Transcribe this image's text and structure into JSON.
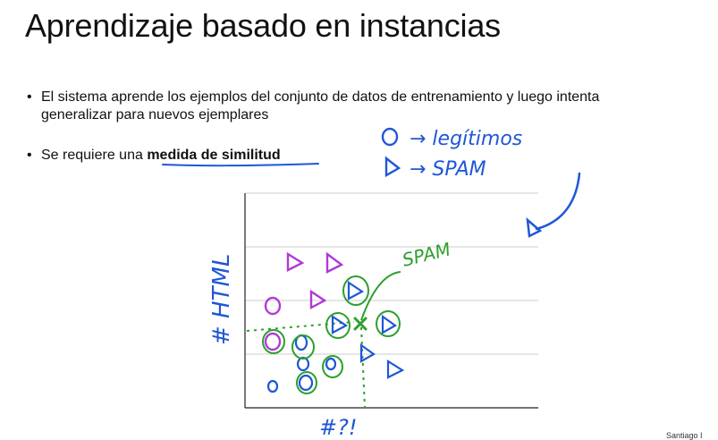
{
  "slide": {
    "title": "Aprendizaje basado en instancias",
    "bullets": [
      {
        "line1": "El sistema aprende los ejemplos del conjunto de datos de entrenamiento y luego intenta",
        "line2": "generalizar para nuevos ejemplares"
      },
      {
        "prefix": "Se requiere una ",
        "bold": "medida de similitud"
      }
    ],
    "footer": "Santiago I"
  },
  "annotations": {
    "legend_circle": "→ legítimos",
    "legend_triangle": "→ SPAM",
    "spam_label": "SPAM",
    "y_axis_label": "# HTML",
    "x_axis_label": "#?!"
  },
  "colors": {
    "blue_ink": "#1f57d6",
    "green_ink": "#2ca02c",
    "purple_ink": "#b03ad6",
    "grid": "#cccccc"
  }
}
